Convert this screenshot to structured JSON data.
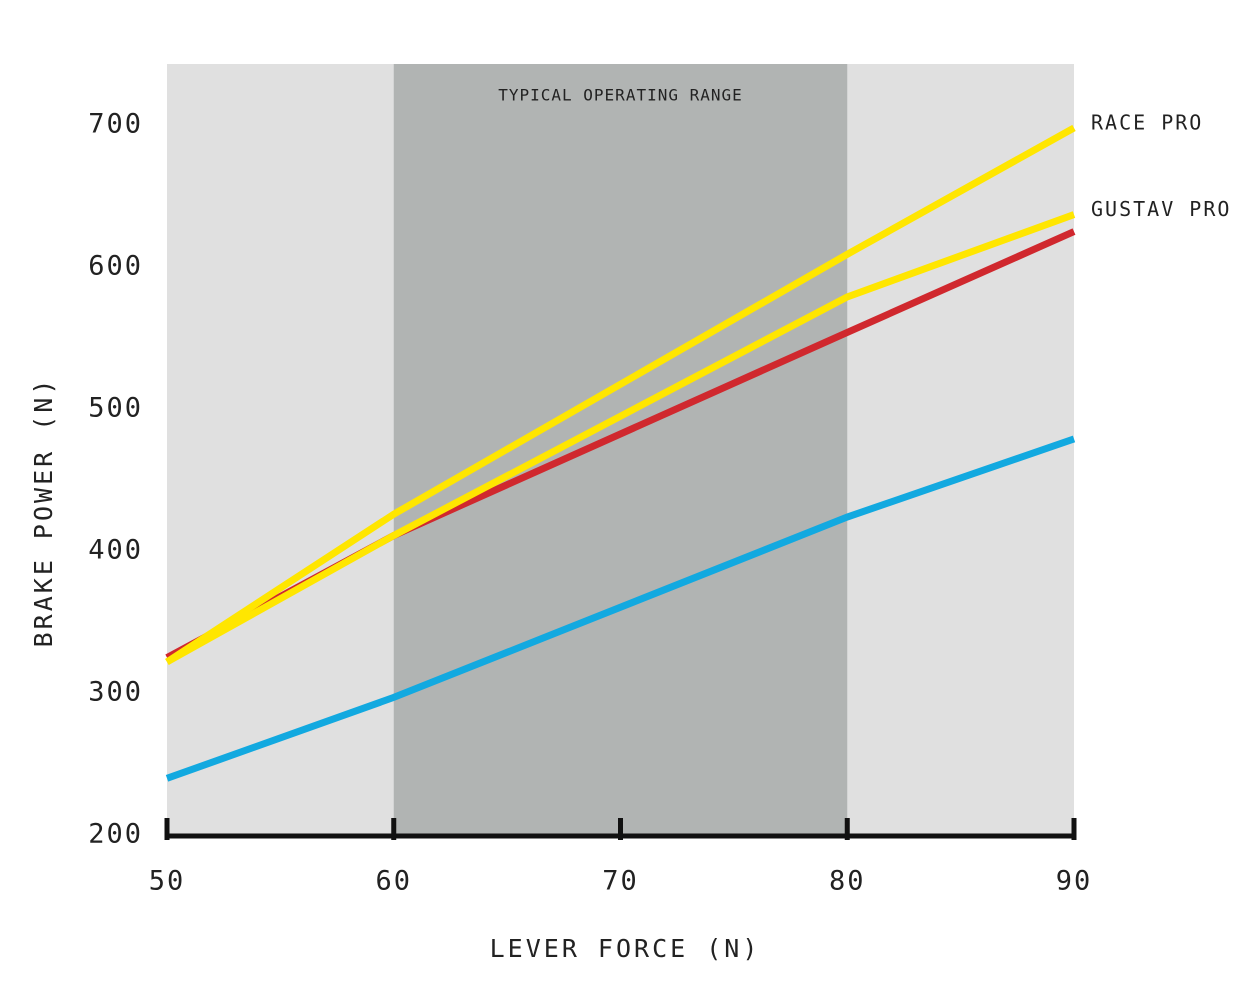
{
  "chart_data": {
    "type": "line",
    "x_label": "LEVER FORCE (N)",
    "y_label": "BRAKE POWER (N)",
    "x": [
      50,
      60,
      80,
      90
    ],
    "xlim": [
      50,
      90
    ],
    "xticks": [
      50,
      60,
      70,
      80,
      90
    ],
    "ylim": [
      200,
      745
    ],
    "yticks": [
      200,
      300,
      400,
      500,
      600,
      700
    ],
    "highlight": {
      "range": [
        60,
        80
      ],
      "label": "TYPICAL OPERATING RANGE",
      "color": "#b1b4b3"
    },
    "background": "#e0e0e0",
    "series": [
      {
        "color": "#12a9e0",
        "values": [
          242,
          299,
          426,
          481
        ]
      },
      {
        "color": "#d0282e",
        "values": [
          327,
          413,
          556,
          627
        ]
      },
      {
        "name": "GUSTAV PRO",
        "color": "#ffe600",
        "values": [
          324,
          413,
          581,
          639
        ]
      },
      {
        "name": "RACE PRO",
        "color": "#ffe600",
        "values": [
          324,
          428,
          611,
          700
        ]
      }
    ]
  }
}
